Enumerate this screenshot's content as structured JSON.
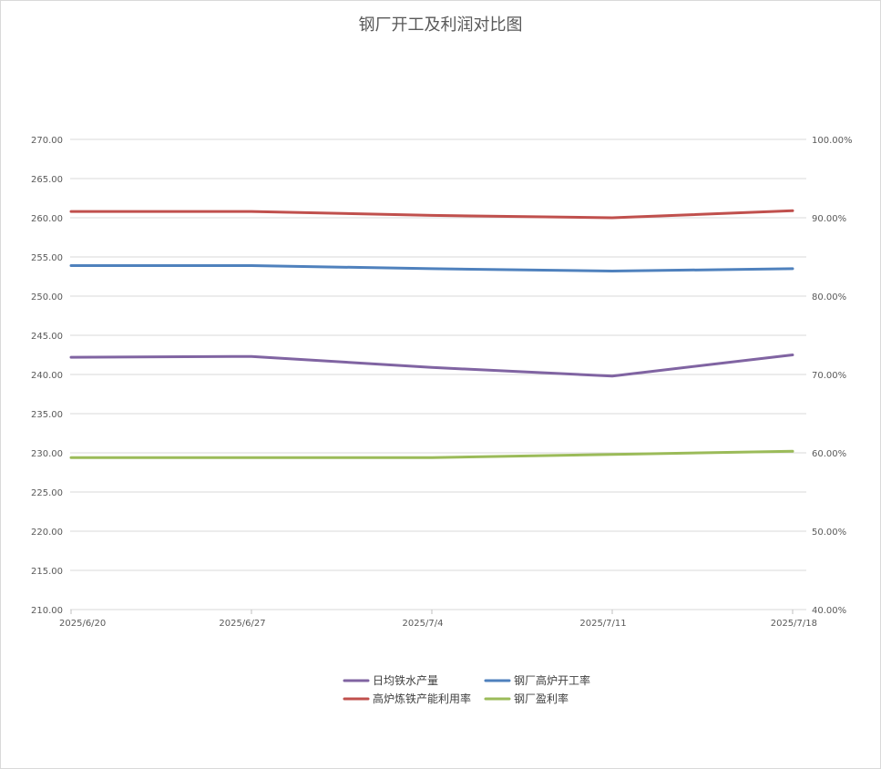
{
  "chart_data": {
    "type": "line",
    "title": "钢厂开工及利润对比图",
    "categories": [
      "2025/6/20",
      "2025/6/27",
      "2025/7/4",
      "2025/7/11",
      "2025/7/18"
    ],
    "left_axis": {
      "min": 210,
      "max": 270,
      "step": 5,
      "tick_labels": [
        "210.00",
        "215.00",
        "220.00",
        "225.00",
        "230.00",
        "235.00",
        "240.00",
        "245.00",
        "250.00",
        "255.00",
        "260.00",
        "265.00",
        "270.00"
      ]
    },
    "right_axis": {
      "min": 40,
      "max": 100,
      "step": 10,
      "tick_labels": [
        "40.00%",
        "50.00%",
        "60.00%",
        "70.00%",
        "80.00%",
        "90.00%",
        "100.00%"
      ]
    },
    "grid": true,
    "legend_position": "bottom",
    "series": [
      {
        "name": "日均铁水产量",
        "axis": "left",
        "color": "#8064a2",
        "values": [
          242.2,
          242.3,
          240.9,
          239.8,
          242.5
        ]
      },
      {
        "name": "钢厂高炉开工率",
        "axis": "right",
        "color": "#4f81bd",
        "values": [
          83.9,
          83.9,
          83.5,
          83.2,
          83.5
        ]
      },
      {
        "name": "高炉炼铁产能利用率",
        "axis": "right",
        "color": "#c0504d",
        "values": [
          90.8,
          90.8,
          90.3,
          90.0,
          90.9
        ]
      },
      {
        "name": "钢厂盈利率",
        "axis": "right",
        "color": "#9bbb59",
        "values": [
          59.4,
          59.4,
          59.4,
          59.8,
          60.2
        ]
      }
    ]
  }
}
